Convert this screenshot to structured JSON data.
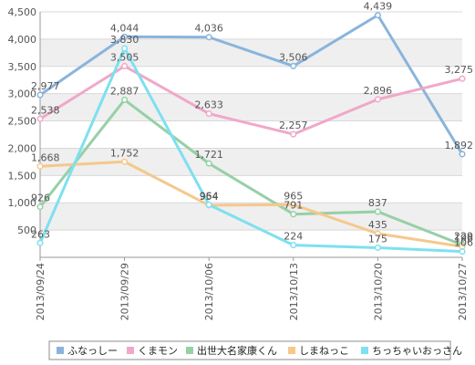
{
  "chart_data": {
    "type": "line",
    "title": "",
    "xlabel": "",
    "ylabel": "",
    "categories": [
      "2013/09/24",
      "2013/09/29",
      "2013/10/06",
      "2013/10/13",
      "2013/10/20",
      "2013/10/27"
    ],
    "ylim": [
      0,
      4500
    ],
    "yticks": [
      500,
      1000,
      1500,
      2000,
      2500,
      3000,
      3500,
      4000,
      4500
    ],
    "ytick_labels": [
      "500",
      "1,000",
      "1,500",
      "2,000",
      "2,500",
      "3,000",
      "3,500",
      "4,000",
      "4,500"
    ],
    "grid": "horizontal, alternating bands",
    "legend_position": "bottom",
    "series": [
      {
        "name": "ふなっしー",
        "color": "#8ab4dc",
        "values": [
          2977,
          4044,
          4036,
          3506,
          4439,
          1892
        ],
        "labels": [
          "2,977",
          "4,044",
          "4,036",
          "3,506",
          "4,439",
          "1,892"
        ]
      },
      {
        "name": "くまモン",
        "color": "#f0a8c8",
        "values": [
          2538,
          3505,
          2633,
          2257,
          2896,
          3275
        ],
        "labels": [
          "2,538",
          "3,505",
          "2,633",
          "2,257",
          "2,896",
          "3,275"
        ]
      },
      {
        "name": "出世大名家康くん",
        "color": "#96d0a6",
        "values": [
          926,
          2887,
          1721,
          791,
          837,
          229
        ],
        "labels": [
          "926",
          "2,887",
          "1,721",
          "791",
          "837",
          "229"
        ]
      },
      {
        "name": "しまねっこ",
        "color": "#f5c88c",
        "values": [
          1668,
          1752,
          954,
          965,
          435,
          196
        ],
        "labels": [
          "1,668",
          "1,752",
          "954",
          "965",
          "435",
          "196"
        ]
      },
      {
        "name": "ちっちゃいおっさん",
        "color": "#7ee0f0",
        "values": [
          263,
          3830,
          964,
          224,
          175,
          106
        ],
        "labels": [
          "263",
          "3,830",
          "964",
          "224",
          "175",
          "106"
        ]
      }
    ]
  }
}
